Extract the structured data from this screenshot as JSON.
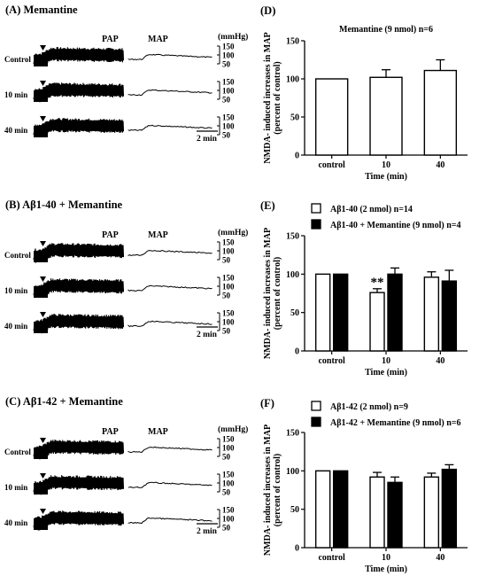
{
  "left_panels": [
    {
      "title": "(A) Memantine",
      "pap_label": "PAP",
      "map_label": "MAP",
      "unit": "(mmHg)",
      "ticks": [
        "150",
        "100",
        "50"
      ],
      "rows": [
        "Control",
        "10 min",
        "40 min"
      ],
      "scale_bar": "2 min"
    },
    {
      "title": "(B) Aβ1-40 + Memantine",
      "pap_label": "PAP",
      "map_label": "MAP",
      "unit": "(mmHg)",
      "ticks": [
        "150",
        "100",
        "50"
      ],
      "rows": [
        "Control",
        "10 min",
        "40 min"
      ],
      "scale_bar": "2 min"
    },
    {
      "title": "(C) Aβ1-42 + Memantine",
      "pap_label": "PAP",
      "map_label": "MAP",
      "unit": "(mmHg)",
      "ticks": [
        "150",
        "100",
        "50"
      ],
      "rows": [
        "Control",
        "10 min",
        "40 min"
      ],
      "scale_bar": "2 min"
    }
  ],
  "chart_data": [
    {
      "type": "bar",
      "panel_label": "(D)",
      "title": "Memantine (9 nmol) n=6",
      "categories": [
        "control",
        "10",
        "40"
      ],
      "series": [
        {
          "values": [
            100,
            102,
            111
          ],
          "errors": [
            0,
            10,
            14
          ],
          "color": "#ffffff"
        }
      ],
      "xlabel": "Time (min)",
      "ylabel": [
        "NMDA- induced increases in MAP",
        "(percent of control)"
      ],
      "ylim": [
        0,
        150
      ],
      "yticks": [
        "0",
        "50",
        "100",
        "150"
      ],
      "annotations": []
    },
    {
      "type": "bar",
      "panel_label": "(E)",
      "title": "",
      "categories": [
        "control",
        "10",
        "40"
      ],
      "series": [
        {
          "name": "Aβ1-40 (2 nmol) n=14",
          "values": [
            100,
            76,
            96
          ],
          "errors": [
            0,
            5,
            7
          ],
          "color": "#ffffff"
        },
        {
          "name": "Aβ1-40 + Memantine (9 nmol) n=4",
          "values": [
            100,
            100,
            91
          ],
          "errors": [
            0,
            8,
            14
          ],
          "color": "#000000"
        }
      ],
      "xlabel": "Time (min)",
      "ylabel": [
        "NMDA- induced increases in MAP",
        "(percent of control)"
      ],
      "ylim": [
        0,
        150
      ],
      "yticks": [
        "0",
        "50",
        "100",
        "150"
      ],
      "annotations": [
        {
          "text": "**",
          "category": "10",
          "series": 0
        }
      ],
      "legend_position": "top-left"
    },
    {
      "type": "bar",
      "panel_label": "(F)",
      "title": "",
      "categories": [
        "control",
        "10",
        "40"
      ],
      "series": [
        {
          "name": "Aβ1-42 (2 nmol) n=9",
          "values": [
            100,
            92,
            92
          ],
          "errors": [
            0,
            6,
            5
          ],
          "color": "#ffffff"
        },
        {
          "name": "Aβ1-42 + Memantine (9 nmol) n=6",
          "values": [
            100,
            85,
            102
          ],
          "errors": [
            0,
            7,
            6
          ],
          "color": "#000000"
        }
      ],
      "xlabel": "Time (min)",
      "ylabel": [
        "NMDA- induced increases in MAP",
        "(percent of control)"
      ],
      "ylim": [
        0,
        150
      ],
      "yticks": [
        "0",
        "50",
        "100",
        "150"
      ],
      "annotations": [],
      "legend_position": "top-left"
    }
  ]
}
